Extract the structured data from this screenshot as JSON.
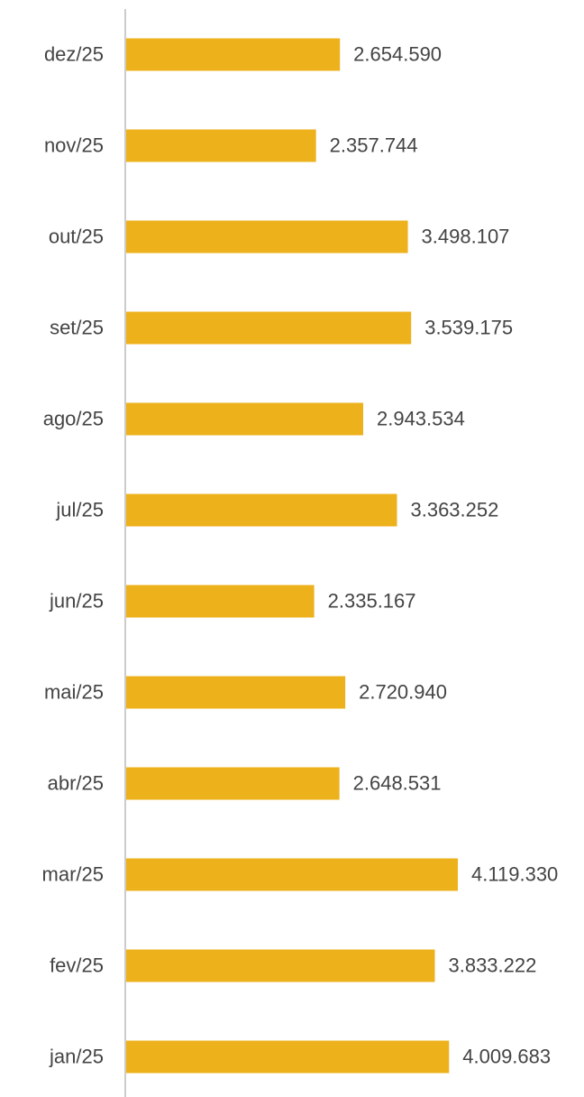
{
  "chart_data": {
    "type": "hbar",
    "color": "#edb11c",
    "categories": [
      "dez/25",
      "nov/25",
      "out/25",
      "set/25",
      "ago/25",
      "jul/25",
      "jun/25",
      "mai/25",
      "abr/25",
      "mar/25",
      "fev/25",
      "jan/25"
    ],
    "values": [
      2654590,
      2357744,
      3498107,
      3539175,
      2943534,
      3363252,
      2335167,
      2720940,
      2648531,
      4119330,
      3833222,
      4009683
    ],
    "value_labels": [
      "2.654.590",
      "2.357.744",
      "3.498.107",
      "3.539.175",
      "2.943.534",
      "3.363.252",
      "2.335.167",
      "2.720.940",
      "2.648.531",
      "4.119.330",
      "3.833.222",
      "4.009.683"
    ],
    "xlim": [
      0,
      4600000
    ]
  }
}
